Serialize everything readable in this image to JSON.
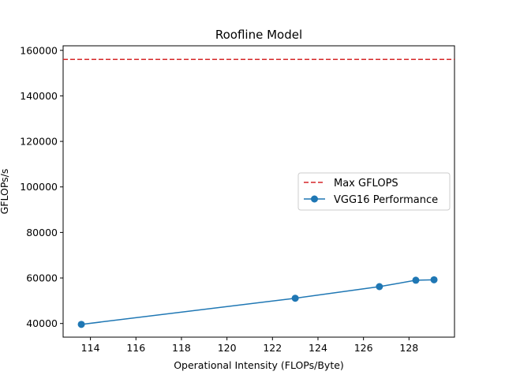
{
  "chart_data": {
    "type": "line",
    "title": "Roofline Model",
    "xlabel": "Operational Intensity (FLOPs/Byte)",
    "ylabel": "GFLOPs/s",
    "xlim": [
      112.8,
      130.0
    ],
    "ylim": [
      34000,
      162000
    ],
    "xticks": [
      114,
      116,
      118,
      120,
      122,
      124,
      126,
      128
    ],
    "yticks": [
      40000,
      60000,
      80000,
      100000,
      120000,
      140000,
      160000
    ],
    "grid": false,
    "legend_position": "center-right",
    "series": [
      {
        "name": "Max GFLOPS",
        "style": "dashed",
        "color": "#d62728",
        "y": 156000
      },
      {
        "name": "VGG16 Performance",
        "style": "line-marker",
        "color": "#1f77b4",
        "x": [
          113.6,
          123.0,
          126.7,
          128.3,
          129.1
        ],
        "y": [
          39600,
          51100,
          56200,
          59000,
          59200
        ]
      }
    ]
  }
}
